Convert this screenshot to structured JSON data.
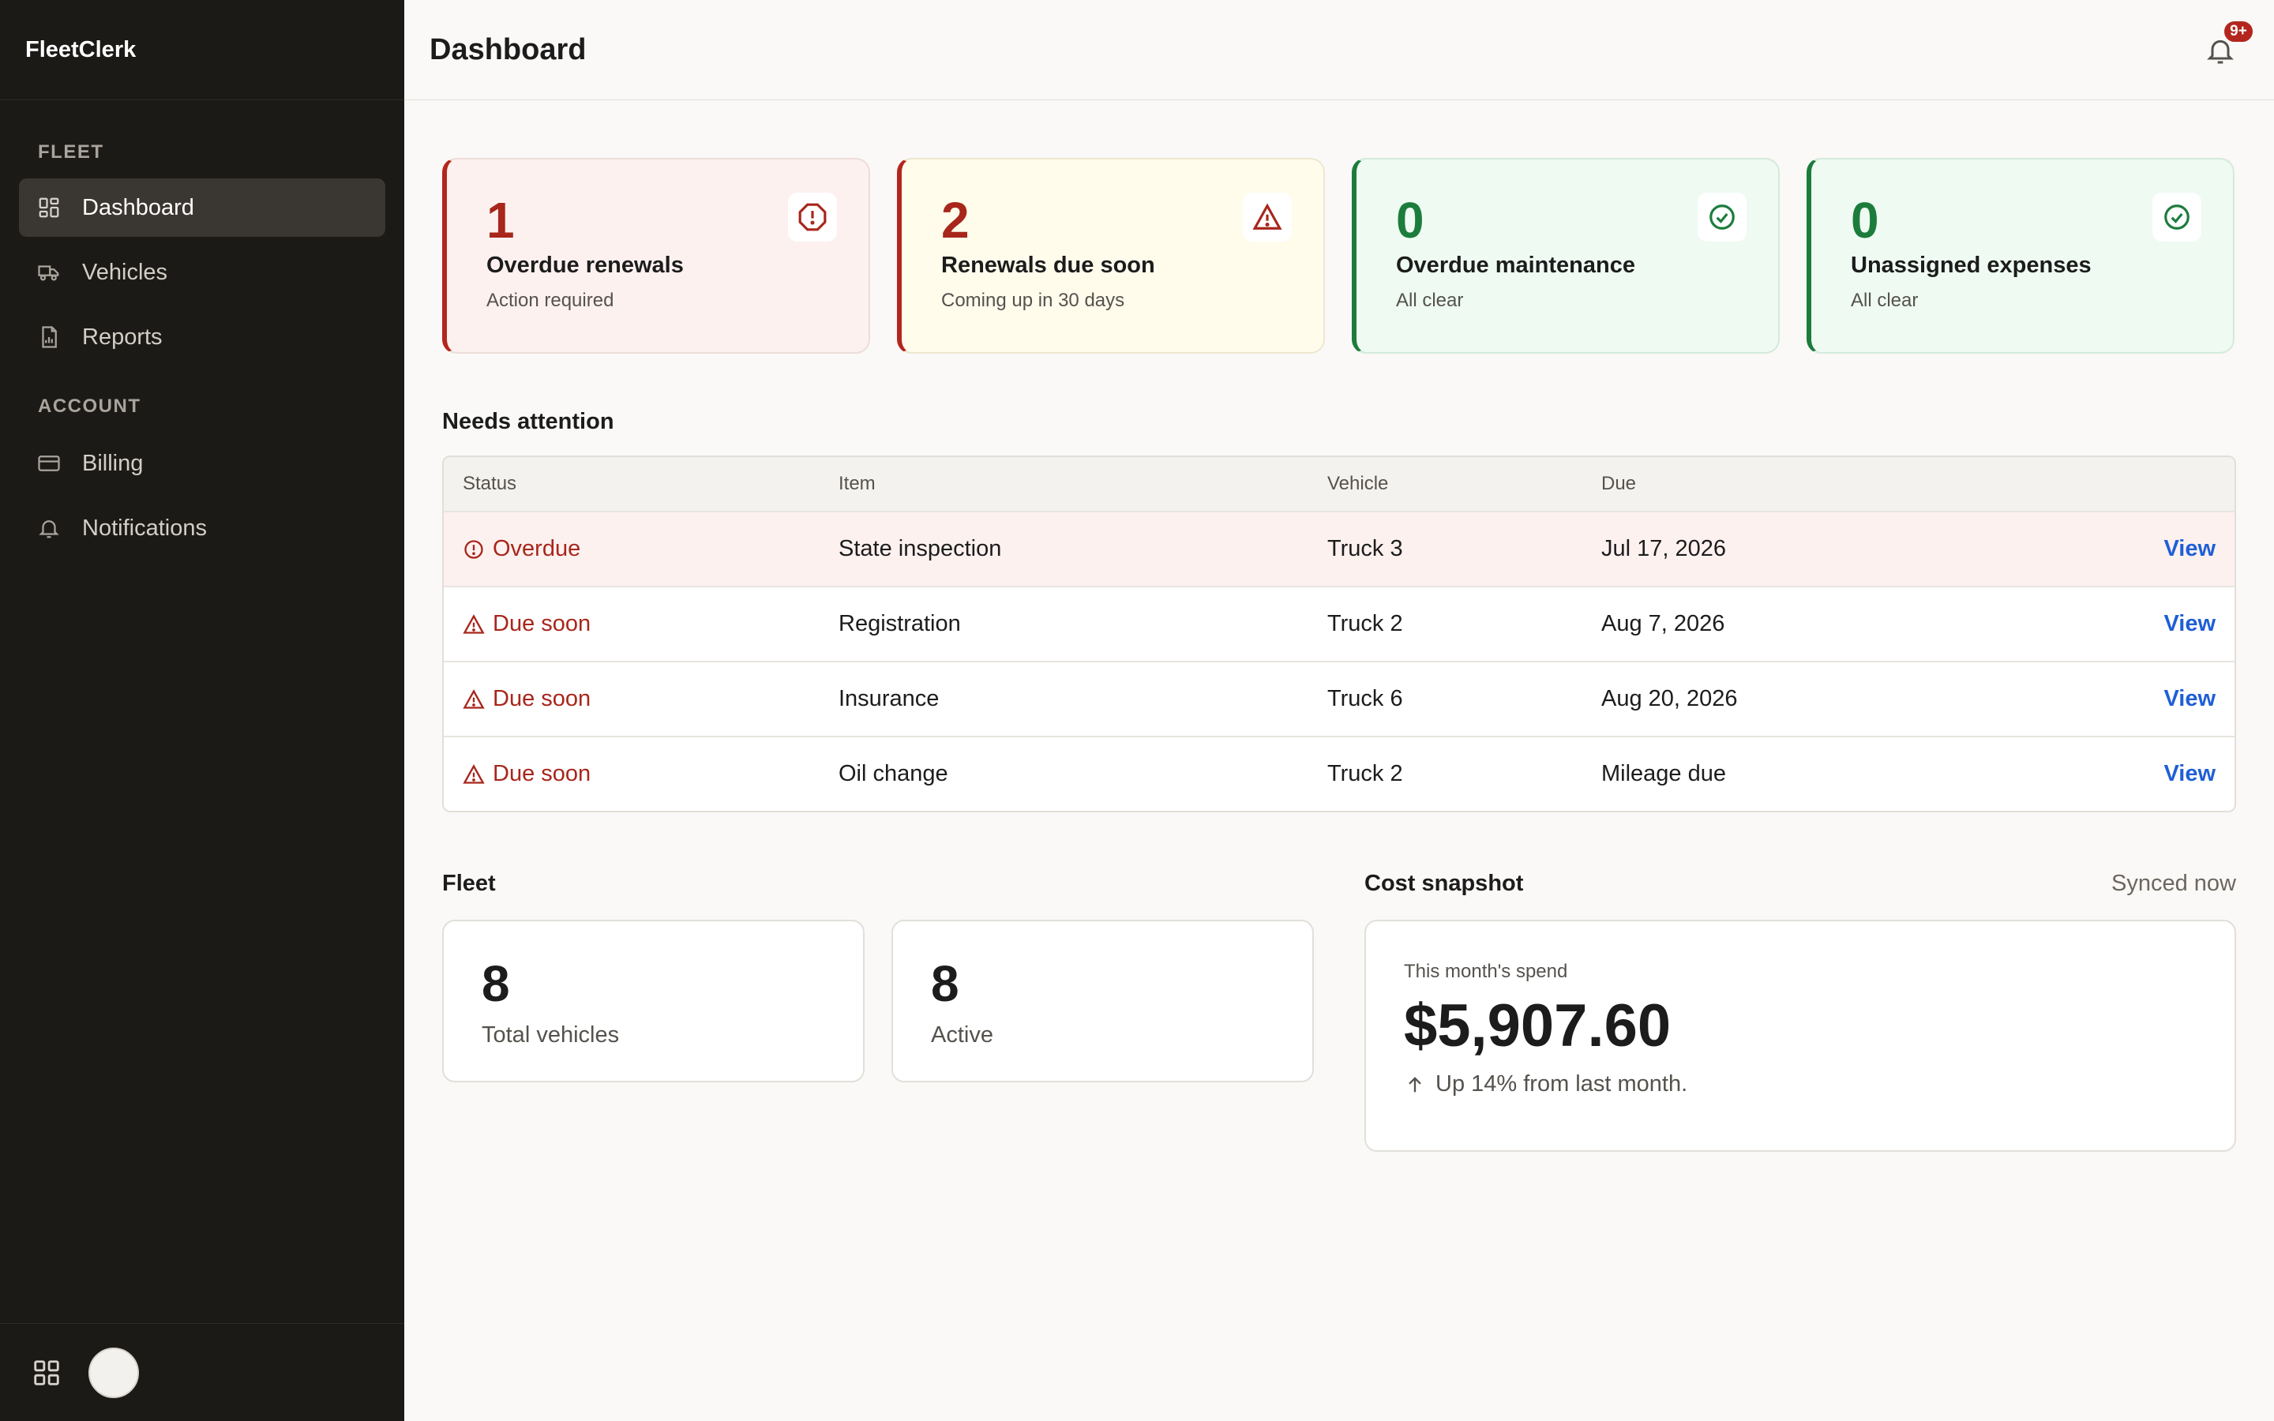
{
  "app": {
    "name": "FleetClerk"
  },
  "sidebar": {
    "sections": [
      {
        "label": "FLEET",
        "items": [
          {
            "label": "Dashboard",
            "icon": "grid-icon",
            "active": true
          },
          {
            "label": "Vehicles",
            "icon": "truck-icon"
          },
          {
            "label": "Reports",
            "icon": "report-icon"
          }
        ]
      },
      {
        "label": "ACCOUNT",
        "items": [
          {
            "label": "Billing",
            "icon": "credit-card-icon"
          },
          {
            "label": "Notifications",
            "icon": "bell-icon"
          }
        ]
      }
    ]
  },
  "header": {
    "title": "Dashboard",
    "notification_badge": "9+"
  },
  "alerts": [
    {
      "value": "1",
      "title": "Overdue renewals",
      "subtitle": "Action required",
      "tone": "red",
      "icon": "alert-octagon-icon"
    },
    {
      "value": "2",
      "title": "Renewals due soon",
      "subtitle": "Coming up in 30 days",
      "tone": "yellow",
      "icon": "warning-triangle-icon"
    },
    {
      "value": "0",
      "title": "Overdue maintenance",
      "subtitle": "All clear",
      "tone": "green",
      "icon": "check-circle-icon"
    },
    {
      "value": "0",
      "title": "Unassigned expenses",
      "subtitle": "All clear",
      "tone": "green",
      "icon": "check-circle-icon"
    }
  ],
  "needs_attention": {
    "title": "Needs attention",
    "columns": [
      "Status",
      "Item",
      "Vehicle",
      "Due"
    ],
    "rows": [
      {
        "status": "Overdue",
        "item": "State inspection",
        "vehicle": "Truck 3",
        "due": "Jul 17, 2026",
        "action": "View"
      },
      {
        "status": "Due soon",
        "item": "Registration",
        "vehicle": "Truck 2",
        "due": "Aug 7, 2026",
        "action": "View"
      },
      {
        "status": "Due soon",
        "item": "Insurance",
        "vehicle": "Truck 6",
        "due": "Aug 20, 2026",
        "action": "View"
      },
      {
        "status": "Due soon",
        "item": "Oil change",
        "vehicle": "Truck 2",
        "due": "Mileage due",
        "action": "View"
      }
    ]
  },
  "fleet": {
    "title": "Fleet",
    "stats": [
      {
        "value": "8",
        "label": "Total vehicles"
      },
      {
        "value": "8",
        "label": "Active"
      }
    ]
  },
  "cost": {
    "title": "Cost snapshot",
    "synced": "Synced now",
    "label": "This month's spend",
    "amount": "$5,907.60",
    "trend": "Up 14% from last month."
  },
  "colors": {
    "sidebar_bg": "#1c1a17",
    "danger": "#a8261b",
    "success": "#1c7c3c",
    "link": "#1f5fd6"
  }
}
